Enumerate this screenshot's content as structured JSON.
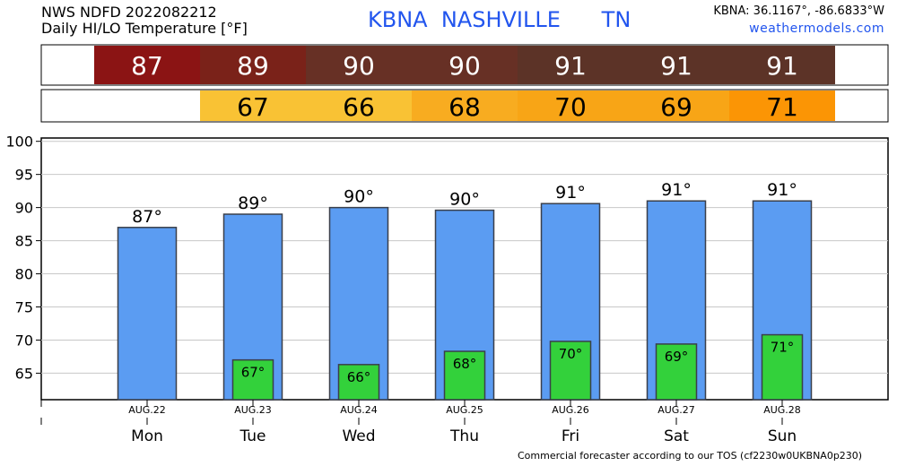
{
  "header": {
    "line1": "NWS NDFD 2022082212",
    "line2": "Daily HI/LO Temperature [°F]",
    "station": "KBNA  NASHVILLE      TN",
    "coords": "KBNA: 36.1167°, -86.6833°W",
    "site": "weathermodels.com"
  },
  "footer": "Commercial forecaster according to our TOS (cf2230w0UKBNA0p230)",
  "colors": {
    "hi_bar": "#5b9cf2",
    "lo_bar": "#33d13b",
    "hi_strip": [
      "#8b1414",
      "#7a2219",
      "#673025",
      "#673025",
      "#5c3327",
      "#5c3327",
      "#5c3327"
    ],
    "lo_strip": [
      null,
      "#f9c234",
      "#f9c234",
      "#f8ac20",
      "#f8a516",
      "#f8a516",
      "#fb9505"
    ]
  },
  "chart_data": {
    "type": "bar",
    "categories": [
      "Mon",
      "Tue",
      "Wed",
      "Thu",
      "Fri",
      "Sat",
      "Sun"
    ],
    "dates": [
      "AUG.22",
      "AUG.23",
      "AUG.24",
      "AUG.25",
      "AUG.26",
      "AUG.27",
      "AUG.28"
    ],
    "hi_labels": [
      "87",
      "89",
      "90",
      "90",
      "91",
      "91",
      "91"
    ],
    "lo_labels": [
      null,
      "67",
      "66",
      "68",
      "70",
      "69",
      "71"
    ],
    "series": [
      {
        "values": [
          87,
          89,
          90,
          89.6,
          90.6,
          91,
          91
        ]
      },
      {
        "values": [
          null,
          67,
          66.3,
          68.3,
          69.8,
          69.4,
          70.8
        ]
      }
    ],
    "yticks": [
      65,
      70,
      75,
      80,
      85,
      90,
      95,
      100
    ],
    "ylim": [
      61,
      100.5
    ],
    "grid": true
  }
}
